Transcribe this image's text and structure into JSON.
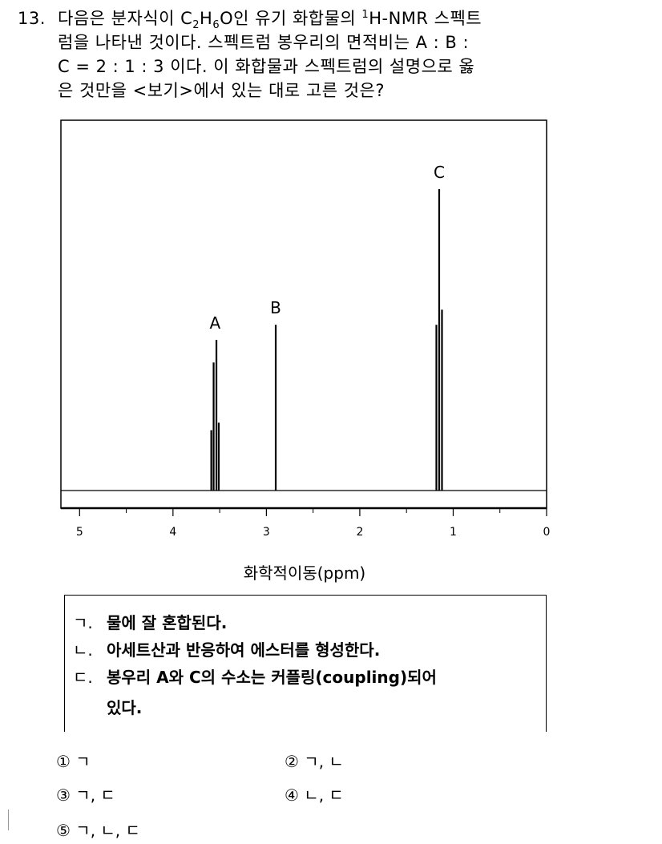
{
  "question": {
    "number": "13.",
    "line1_pre": "다음은 분자식이 C",
    "sub1": "2",
    "line1_mid": "H",
    "sub2": "6",
    "line1_post": "O인 유기 화합물의 ",
    "sup1": "1",
    "line1_end": "H-NMR 스펙트",
    "line2": "럼을 나타낸 것이다. 스펙트럼 봉우리의 면적비는 A : B :",
    "line3": "C = 2 : 1 : 3 이다. 이 화합물과 스펙트럼의 설명으로 옳",
    "line4": "은 것만을 <보기>에서 있는 대로 고른 것은?"
  },
  "chart_data": {
    "type": "line",
    "title": "",
    "xlabel": "화학적이동(ppm)",
    "ylabel": "",
    "x_reversed": true,
    "xlim": [
      5.2,
      0
    ],
    "ticks": [
      "5",
      "4",
      "3",
      "2",
      "1",
      "0"
    ],
    "peaks": [
      {
        "label": "A",
        "ppm": 3.55,
        "relative_height": 0.5,
        "multiplicity": "quartet"
      },
      {
        "label": "B",
        "ppm": 2.9,
        "relative_height": 0.55,
        "multiplicity": "singlet"
      },
      {
        "label": "C",
        "ppm": 1.15,
        "relative_height": 1.0,
        "multiplicity": "triplet"
      }
    ]
  },
  "bogi": {
    "items": [
      {
        "marker": "ㄱ.",
        "text": "물에 잘 혼합된다."
      },
      {
        "marker": "ㄴ.",
        "text": "아세트산과 반응하여 에스터를 형성한다."
      },
      {
        "marker": "ㄷ.",
        "text": "봉우리 A와 C의 수소는 커플링(coupling)되어"
      }
    ],
    "continuation": "있다."
  },
  "choices": [
    {
      "num": "①",
      "text": "ㄱ"
    },
    {
      "num": "②",
      "text": "ㄱ, ㄴ"
    },
    {
      "num": "③",
      "text": "ㄱ, ㄷ"
    },
    {
      "num": "④",
      "text": "ㄴ, ㄷ"
    },
    {
      "num": "⑤",
      "text": "ㄱ, ㄴ, ㄷ"
    }
  ]
}
